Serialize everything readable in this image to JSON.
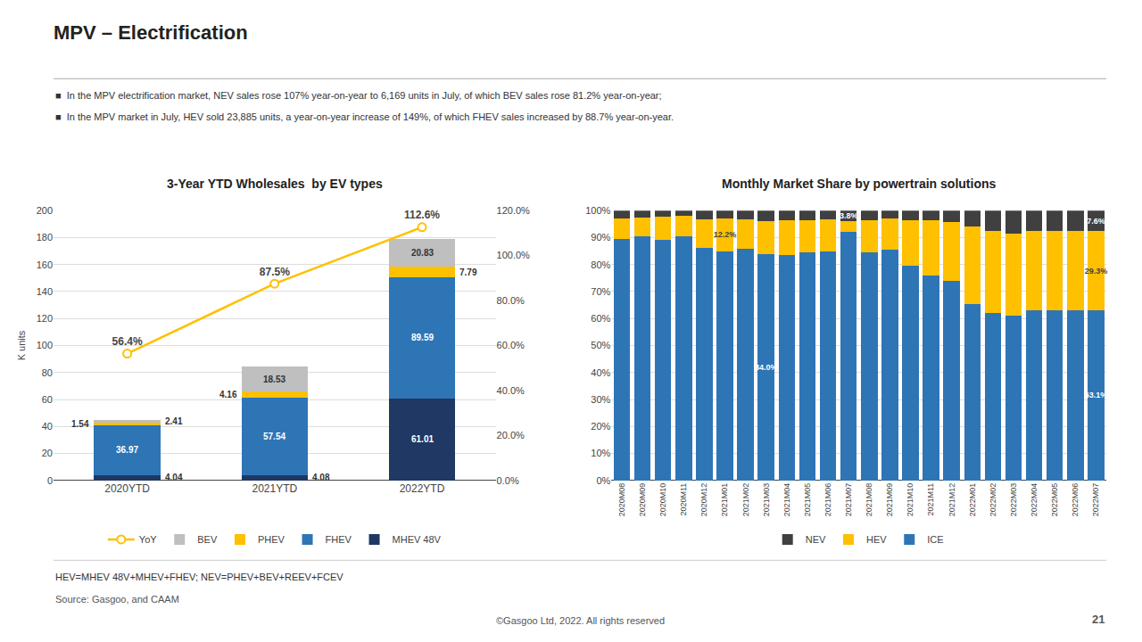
{
  "title": "MPV – Electrification",
  "annotations": [
    "■  In the MPV electrification market, NEV sales rose 107% year-on-year to 6,169 units in July, of which BEV sales rose 81.2% year-on-year;",
    "■  In the MPV market in July, HEV sold 23,885 units, a year-on-year increase of 149%, of which FHEV sales increased by 88.7% year-on-year.",
    "HEV=MHEV 48V+MHEV+FHEV; NEV=PHEV+BEV+REEV+FCEV",
    "Source: Gasgoo, and CAAM",
    "©Gasgoo Ltd, 2022. All rights reserved",
    "21"
  ],
  "chart_data": [
    {
      "type": "bar",
      "stacked": true,
      "title": "3-Year YTD Wholesales  by EV types",
      "ylabel": "K units",
      "categories": [
        "2020YTD",
        "2021YTD",
        "2022YTD"
      ],
      "series": [
        {
          "name": "MHEV 48V",
          "color": "#1f3864",
          "values": [
            4.04,
            4.08,
            61.01
          ]
        },
        {
          "name": "FHEV",
          "color": "#2e75b6",
          "values": [
            36.97,
            57.54,
            89.59
          ]
        },
        {
          "name": "PHEV",
          "color": "#ffc000",
          "values": [
            1.54,
            4.16,
            7.79
          ]
        },
        {
          "name": "BEV",
          "color": "#bfbfbf",
          "values": [
            2.41,
            18.53,
            20.83
          ]
        },
        {
          "name": "YoY",
          "type": "line",
          "axis": "y2",
          "color": "#ffc000",
          "marker": "circle",
          "values": [
            56.4,
            87.5,
            112.6
          ],
          "value_labels": [
            "56.4%",
            "87.5%",
            "112.6%"
          ]
        }
      ],
      "data_labels": true,
      "ylim": [
        0,
        200
      ],
      "yticks": [
        0,
        20,
        40,
        60,
        80,
        100,
        120,
        140,
        160,
        180,
        200
      ],
      "y2lim": [
        0,
        120
      ],
      "y2ticks": [
        {
          "value": 0.0,
          "label": "0.0%"
        },
        {
          "value": 20.0,
          "label": "20.0%"
        },
        {
          "value": 40.0,
          "label": "40.0%"
        },
        {
          "value": 60.0,
          "label": "60.0%"
        },
        {
          "value": 80.0,
          "label": "80.0%"
        },
        {
          "value": 100.0,
          "label": "100.0%"
        },
        {
          "value": 120.0,
          "label": "120.0%"
        }
      ],
      "grid": true,
      "legend": "bottom"
    },
    {
      "type": "bar",
      "stacked": true,
      "title": "Monthly Market Share by powertrain solutions",
      "categories": [
        "2020M08",
        "2020M09",
        "2020M10",
        "2020M11",
        "2020M12",
        "2021M01",
        "2021M02",
        "2021M03",
        "2021M04",
        "2021M05",
        "2021M06",
        "2021M07",
        "2021M08",
        "2021M09",
        "2021M10",
        "2021M11",
        "2021M12",
        "2022M01",
        "2022M02",
        "2022M03",
        "2022M04",
        "2022M05",
        "2022M06",
        "2022M07"
      ],
      "series": [
        {
          "name": "ICE",
          "color": "#2e75b6",
          "values": [
            89.5,
            90.5,
            89.3,
            90.5,
            86.3,
            85.0,
            85.8,
            84.0,
            83.5,
            84.5,
            84.8,
            92.0,
            84.5,
            85.5,
            79.5,
            76.0,
            73.8,
            65.5,
            62.0,
            61.0,
            63.1,
            63.1,
            63.1,
            63.1
          ],
          "value_labels": [
            null,
            null,
            null,
            null,
            null,
            null,
            null,
            "84.0%",
            null,
            null,
            null,
            null,
            null,
            null,
            null,
            null,
            null,
            null,
            null,
            null,
            null,
            null,
            null,
            "63.1%"
          ]
        },
        {
          "name": "HEV",
          "color": "#ffc000",
          "values": [
            7.5,
            7.0,
            8.5,
            7.5,
            10.5,
            12.2,
            11.0,
            12.0,
            12.8,
            12.0,
            11.8,
            4.2,
            11.8,
            11.5,
            17.0,
            20.5,
            22.0,
            28.5,
            30.5,
            30.5,
            29.3,
            29.3,
            29.3,
            29.3
          ],
          "value_labels": [
            null,
            null,
            null,
            null,
            null,
            "12.2%",
            null,
            null,
            null,
            null,
            null,
            null,
            null,
            null,
            null,
            null,
            null,
            null,
            null,
            null,
            null,
            null,
            null,
            "29.3%"
          ]
        },
        {
          "name": "NEV",
          "color": "#404040",
          "values": [
            3.0,
            2.5,
            2.2,
            2.0,
            3.2,
            2.8,
            3.2,
            4.0,
            3.7,
            3.5,
            3.4,
            3.8,
            3.7,
            3.0,
            3.5,
            3.5,
            4.2,
            6.0,
            7.5,
            8.5,
            7.6,
            7.6,
            7.6,
            7.6
          ],
          "value_labels": [
            null,
            null,
            null,
            null,
            null,
            null,
            null,
            null,
            null,
            null,
            null,
            "3.8%",
            null,
            null,
            null,
            null,
            null,
            null,
            null,
            null,
            null,
            null,
            null,
            "7.6%"
          ]
        }
      ],
      "ylim": [
        0,
        100
      ],
      "yticks": [
        {
          "value": 0,
          "label": "0%"
        },
        {
          "value": 10,
          "label": "10%"
        },
        {
          "value": 20,
          "label": "20%"
        },
        {
          "value": 30,
          "label": "30%"
        },
        {
          "value": 40,
          "label": "40%"
        },
        {
          "value": 50,
          "label": "50%"
        },
        {
          "value": 60,
          "label": "60%"
        },
        {
          "value": 70,
          "label": "70%"
        },
        {
          "value": 80,
          "label": "80%"
        },
        {
          "value": 90,
          "label": "90%"
        },
        {
          "value": 100,
          "label": "100%"
        }
      ],
      "grid": true,
      "legend": "bottom"
    }
  ]
}
